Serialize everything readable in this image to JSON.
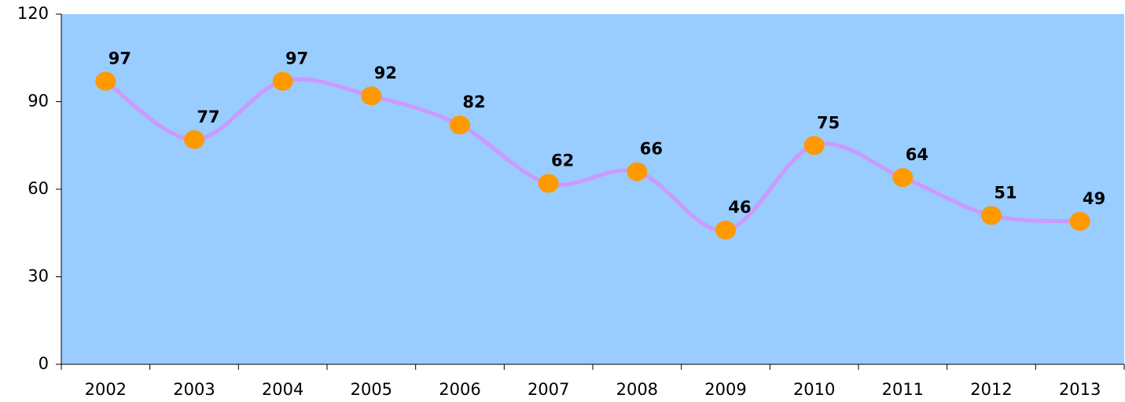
{
  "chart_data": {
    "type": "line",
    "categories": [
      "2002",
      "2003",
      "2004",
      "2005",
      "2006",
      "2007",
      "2008",
      "2009",
      "2010",
      "2011",
      "2012",
      "2013"
    ],
    "series": [
      {
        "color": "#cc99ff",
        "marker_color": "#ff9900",
        "values": [
          97,
          77,
          97,
          92,
          82,
          62,
          66,
          46,
          75,
          64,
          51,
          49
        ]
      }
    ],
    "ylim": [
      0,
      120
    ],
    "yticks": [
      0,
      30,
      60,
      90,
      120
    ],
    "smooth": true,
    "background": "#99ccff"
  }
}
